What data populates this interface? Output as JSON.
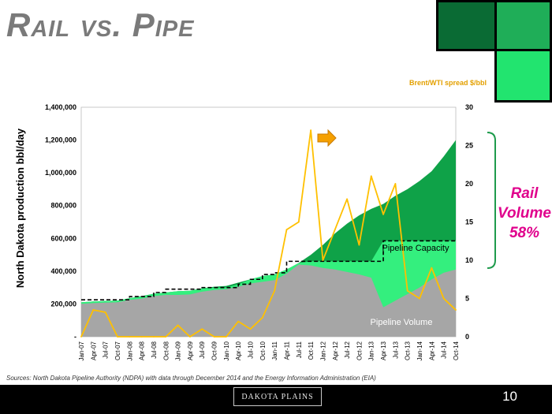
{
  "slide": {
    "title": "Rail vs. Pipe",
    "source": "Sources: North Dakota Pipeline Authority (NDPA) with data through December 2014 and the Energy Information Administration (EIA)",
    "page_number": "10",
    "logo_text": "DAKOTA PLAINS",
    "callout_line1": "Rail",
    "callout_line2": "Volume",
    "callout_line3": "58%"
  },
  "colors": {
    "rail_fill": "#0fa248",
    "pipeline_volume_fill": "#a6a6a6",
    "pipeline_capacity_excess_fill": "#34ef7e",
    "spread_line": "#ffc000",
    "callout": "#e0008c",
    "bracket": "#1e9b4c"
  },
  "chart_data": {
    "type": "area",
    "ylabel": "North Dakota production bbl/day",
    "y2label": "Brent/WTI spread $/bbl",
    "ylim": [
      0,
      1400000
    ],
    "y2lim": [
      0,
      30
    ],
    "yticks": [
      "-",
      "200,000",
      "400,000",
      "600,000",
      "800,000",
      "1,000,000",
      "1,200,000",
      "1,400,000"
    ],
    "y2ticks": [
      "0",
      "5",
      "10",
      "15",
      "20",
      "25",
      "30"
    ],
    "x_tick_labels": [
      "Jan-07",
      "Apr-07",
      "Jul-07",
      "Oct-07",
      "Jan-08",
      "Apr-08",
      "Jul-08",
      "Oct-08",
      "Jan-09",
      "Apr-09",
      "Jul-09",
      "Oct-09",
      "Jan-10",
      "Apr-10",
      "Jul-10",
      "Oct-10",
      "Jan-11",
      "Apr-11",
      "Jul-11",
      "Oct-11",
      "Jan-12",
      "Apr-12",
      "Jul-12",
      "Oct-12",
      "Jan-13",
      "Apr-13",
      "Jul-13",
      "Oct-13",
      "Jan-14",
      "Apr-14",
      "Jul-14",
      "Oct-14"
    ],
    "series": [
      {
        "name": "North Dakota production",
        "values": [
          210000,
          215000,
          218000,
          220000,
          235000,
          248000,
          262000,
          270000,
          278000,
          280000,
          295000,
          305000,
          310000,
          330000,
          350000,
          370000,
          380000,
          410000,
          450000,
          500000,
          560000,
          630000,
          690000,
          740000,
          780000,
          810000,
          860000,
          900000,
          950000,
          1010000,
          1100000,
          1200000
        ]
      },
      {
        "name": "Pipeline Volume",
        "values": [
          200000,
          205000,
          208000,
          210000,
          225000,
          232000,
          248000,
          255000,
          255000,
          258000,
          275000,
          285000,
          290000,
          305000,
          325000,
          335000,
          345000,
          385000,
          440000,
          435000,
          420000,
          410000,
          395000,
          380000,
          360000,
          180000,
          220000,
          260000,
          300000,
          350000,
          390000,
          410000
        ]
      },
      {
        "name": "Pipeline Capacity",
        "values": [
          225000,
          225000,
          225000,
          225000,
          245000,
          245000,
          270000,
          290000,
          290000,
          290000,
          300000,
          300000,
          300000,
          320000,
          350000,
          380000,
          390000,
          460000,
          460000,
          460000,
          460000,
          460000,
          460000,
          460000,
          460000,
          585000,
          585000,
          585000,
          585000,
          585000,
          585000,
          585000
        ]
      },
      {
        "name": "Brent/WTI spread $/bbl",
        "axis": "right",
        "values": [
          0,
          3.5,
          3.2,
          0,
          -1,
          -2,
          -1,
          -2,
          1.5,
          -1,
          1,
          -1,
          0,
          2,
          1,
          2.5,
          6,
          14,
          15,
          27,
          10,
          14,
          18,
          12,
          21,
          16,
          20,
          6,
          5,
          9,
          5,
          3.5
        ]
      }
    ],
    "annotations": [
      "Pipeline Capacity",
      "Pipeline Volume"
    ]
  }
}
